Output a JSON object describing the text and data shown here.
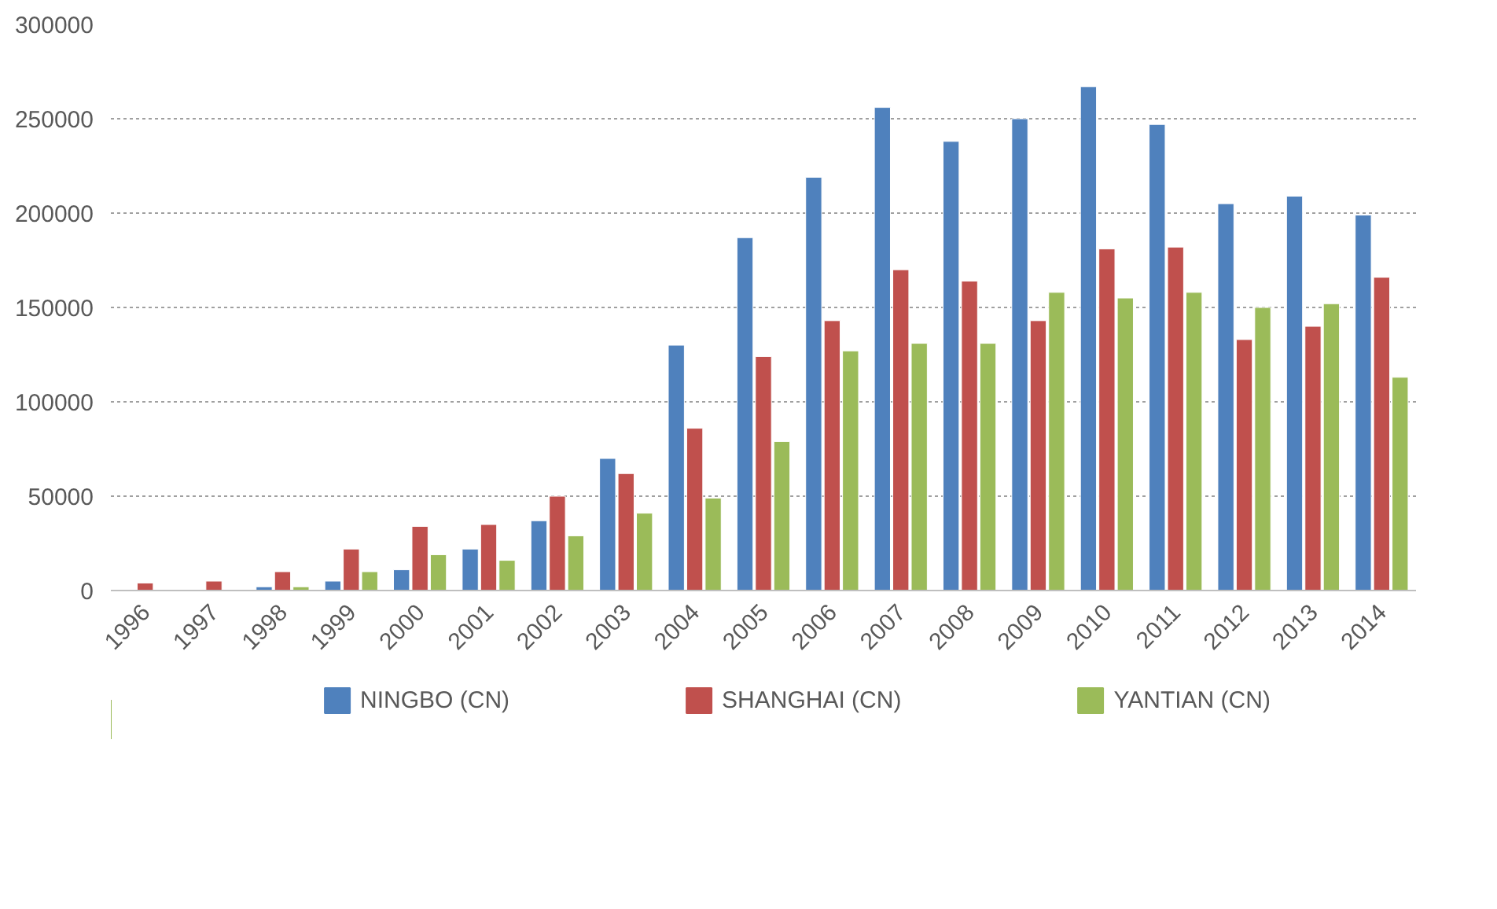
{
  "chart_data": {
    "type": "bar",
    "categories": [
      "1996",
      "1997",
      "1998",
      "1999",
      "2000",
      "2001",
      "2002",
      "2003",
      "2004",
      "2005",
      "2006",
      "2007",
      "2008",
      "2009",
      "2010",
      "2011",
      "2012",
      "2013",
      "2014"
    ],
    "series": [
      {
        "name": "NINGBO (CN)",
        "color": "#4f81bd",
        "values": [
          null,
          null,
          2000,
          5000,
          11000,
          22000,
          37000,
          70000,
          130000,
          187000,
          219000,
          256000,
          238000,
          250000,
          267000,
          247000,
          205000,
          209000,
          199000
        ]
      },
      {
        "name": "SHANGHAI (CN)",
        "color": "#c0504d",
        "values": [
          4000,
          5000,
          10000,
          22000,
          34000,
          35000,
          50000,
          62000,
          86000,
          124000,
          143000,
          170000,
          164000,
          143000,
          181000,
          182000,
          133000,
          140000,
          166000
        ]
      },
      {
        "name": "YANTIAN (CN)",
        "color": "#9bbb59",
        "values": [
          null,
          null,
          2000,
          10000,
          19000,
          16000,
          29000,
          41000,
          49000,
          79000,
          127000,
          131000,
          131000,
          158000,
          155000,
          158000,
          150000,
          152000,
          113000
        ]
      }
    ],
    "ylim": [
      0,
      300000
    ],
    "yticks": [
      0,
      50000,
      100000,
      150000,
      200000,
      250000,
      300000
    ],
    "grid": "y",
    "legend": "bottom"
  }
}
